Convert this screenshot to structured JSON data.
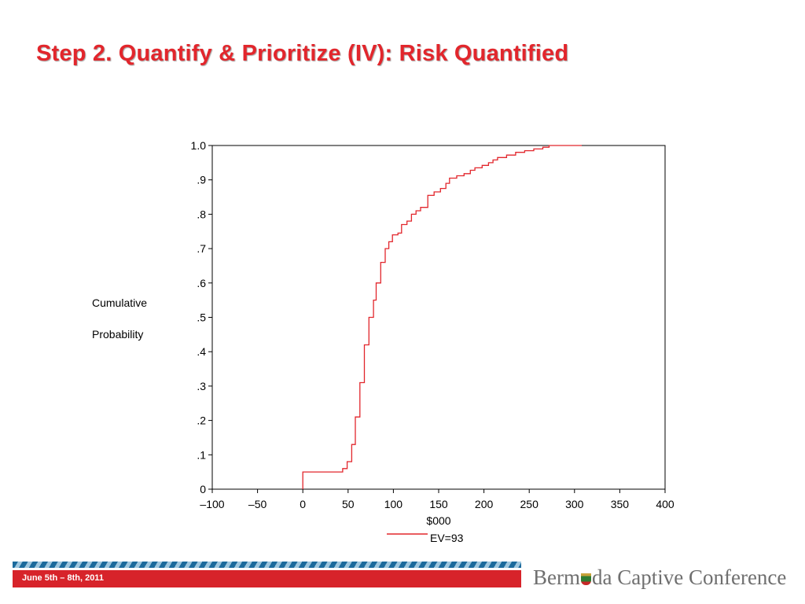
{
  "slide": {
    "title": "Step 2. Quantify & Prioritize (IV): Risk Quantified",
    "ylabel_line1": "Cumulative",
    "ylabel_line2": "Probability"
  },
  "footer": {
    "date": "June 5th – 8th, 2011",
    "brand_part1": "Berm",
    "brand_part2": "da Captive Conference",
    "accent_red": "#d7232a",
    "accent_blue": "#1b6a9c"
  },
  "chart_data": {
    "type": "line",
    "step": true,
    "title": "",
    "xlabel": "$000",
    "ylabel": "Cumulative Probability",
    "xlim": [
      -100,
      400
    ],
    "ylim": [
      0,
      1.0
    ],
    "xticks": [
      -100,
      -50,
      0,
      50,
      100,
      150,
      200,
      250,
      300,
      350,
      400
    ],
    "xtick_labels": [
      "–100",
      "–50",
      "0",
      "50",
      "100",
      "150",
      "200",
      "250",
      "300",
      "350",
      "400"
    ],
    "yticks": [
      0,
      0.1,
      0.2,
      0.3,
      0.4,
      0.5,
      0.6,
      0.7,
      0.8,
      0.9,
      1.0
    ],
    "ytick_labels": [
      "0",
      ".1",
      ".2",
      ".3",
      ".4",
      ".5",
      ".6",
      ".7",
      ".8",
      ".9",
      "1.0"
    ],
    "grid": false,
    "legend_position": "bottom",
    "series": [
      {
        "name": "EV=93",
        "color": "#e2262c",
        "points": [
          [
            0,
            0
          ],
          [
            0,
            0.05
          ],
          [
            44,
            0.05
          ],
          [
            44,
            0.06
          ],
          [
            49,
            0.06
          ],
          [
            49,
            0.08
          ],
          [
            54,
            0.08
          ],
          [
            54,
            0.13
          ],
          [
            58,
            0.13
          ],
          [
            58,
            0.21
          ],
          [
            63,
            0.21
          ],
          [
            63,
            0.31
          ],
          [
            68,
            0.31
          ],
          [
            68,
            0.42
          ],
          [
            73,
            0.42
          ],
          [
            73,
            0.5
          ],
          [
            78,
            0.5
          ],
          [
            78,
            0.55
          ],
          [
            81,
            0.55
          ],
          [
            81,
            0.6
          ],
          [
            86,
            0.6
          ],
          [
            86,
            0.66
          ],
          [
            91,
            0.66
          ],
          [
            91,
            0.7
          ],
          [
            95,
            0.7
          ],
          [
            95,
            0.72
          ],
          [
            99,
            0.72
          ],
          [
            99,
            0.74
          ],
          [
            105,
            0.74
          ],
          [
            105,
            0.745
          ],
          [
            109,
            0.745
          ],
          [
            109,
            0.77
          ],
          [
            115,
            0.77
          ],
          [
            115,
            0.78
          ],
          [
            120,
            0.78
          ],
          [
            120,
            0.8
          ],
          [
            125,
            0.8
          ],
          [
            125,
            0.81
          ],
          [
            130,
            0.81
          ],
          [
            130,
            0.82
          ],
          [
            138,
            0.82
          ],
          [
            138,
            0.855
          ],
          [
            145,
            0.855
          ],
          [
            145,
            0.865
          ],
          [
            152,
            0.865
          ],
          [
            152,
            0.875
          ],
          [
            158,
            0.875
          ],
          [
            158,
            0.89
          ],
          [
            162,
            0.89
          ],
          [
            162,
            0.905
          ],
          [
            170,
            0.905
          ],
          [
            170,
            0.912
          ],
          [
            178,
            0.912
          ],
          [
            178,
            0.918
          ],
          [
            185,
            0.918
          ],
          [
            185,
            0.928
          ],
          [
            190,
            0.928
          ],
          [
            190,
            0.935
          ],
          [
            198,
            0.935
          ],
          [
            198,
            0.942
          ],
          [
            205,
            0.942
          ],
          [
            205,
            0.95
          ],
          [
            210,
            0.95
          ],
          [
            210,
            0.958
          ],
          [
            215,
            0.958
          ],
          [
            215,
            0.965
          ],
          [
            225,
            0.965
          ],
          [
            225,
            0.972
          ],
          [
            235,
            0.972
          ],
          [
            235,
            0.98
          ],
          [
            245,
            0.98
          ],
          [
            245,
            0.985
          ],
          [
            255,
            0.985
          ],
          [
            255,
            0.99
          ],
          [
            265,
            0.99
          ],
          [
            265,
            0.995
          ],
          [
            272,
            0.995
          ],
          [
            272,
            1.0
          ],
          [
            308,
            1.0
          ]
        ]
      }
    ]
  }
}
